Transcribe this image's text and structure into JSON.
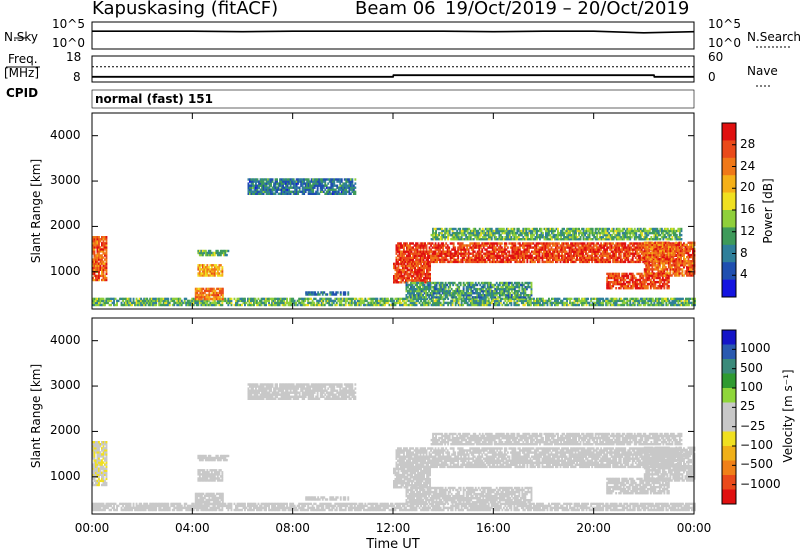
{
  "header": {
    "station": "Kapuskasing (fitACF)",
    "beam": "Beam 06",
    "dates": "19/Oct/2019 – 20/Oct/2019"
  },
  "noise_panel": {
    "left_label": "N.Sky",
    "right_label": "N.Search",
    "tick_top": "10^5",
    "tick_bottom": "10^0"
  },
  "freq_panel": {
    "left_label": "Freq.",
    "left_unit": "[MHz]",
    "right_label": "Nave",
    "left_tick_top": "18",
    "left_tick_bottom": "8",
    "right_tick_top": "60",
    "right_tick_bottom": "0",
    "cpid_label": "CPID",
    "cpid_text": "normal (fast) 151"
  },
  "axes": {
    "ylabel": "Slant Range [km]",
    "xlabel": "Time UT",
    "yticks": [
      "1000",
      "2000",
      "3000",
      "4000"
    ],
    "xticks": [
      "00:00",
      "04:00",
      "08:00",
      "12:00",
      "16:00",
      "20:00",
      "00:00"
    ]
  },
  "colorbars": {
    "power": {
      "label": "Power [dB]",
      "ticks": [
        "4",
        "8",
        "12",
        "16",
        "20",
        "24",
        "28"
      ],
      "colors": [
        "#1515e0",
        "#1f4fb0",
        "#2f7f9a",
        "#3e9a5a",
        "#8fcf3a",
        "#f0e020",
        "#f5b018",
        "#f07818",
        "#ea4a1a",
        "#e01010"
      ]
    },
    "velocity": {
      "label": "Velocity [m s⁻¹]",
      "ticks": [
        "1000",
        "500",
        "100",
        "25",
        "−25",
        "−100",
        "−500",
        "−1000"
      ],
      "colors": [
        "#1515c8",
        "#2a5ab0",
        "#3a8a7a",
        "#2f9a30",
        "#8fd63a",
        "#c8c8c8",
        "#c8c8c8",
        "#f0e020",
        "#f0b018",
        "#f08018",
        "#ea4a1a",
        "#e01010"
      ]
    }
  },
  "chart_data": {
    "type": "heatmap",
    "x_unit": "hours UT",
    "xlim": [
      0,
      24
    ],
    "y_unit": "km",
    "ylim": [
      180,
      4500
    ],
    "power_range_db": [
      0,
      32
    ],
    "velocity_range": [
      -1250,
      1250
    ],
    "noise_series": {
      "name": "N.Sky",
      "x": [
        0,
        2,
        4,
        6,
        8,
        10,
        12,
        14,
        16,
        18,
        20,
        22,
        24
      ],
      "log_values": [
        3.3,
        3.3,
        3.3,
        3.2,
        3.3,
        3.3,
        3.3,
        3.3,
        3.2,
        3.3,
        3.3,
        3.0,
        3.2
      ]
    },
    "freq_series": {
      "x": [
        0,
        12,
        12.02,
        22.4,
        22.42,
        24
      ],
      "values": [
        10.0,
        10.0,
        10.6,
        10.6,
        10.0,
        10.0
      ]
    },
    "nave_series": {
      "x": [
        0,
        24
      ],
      "values": [
        35,
        35
      ]
    },
    "echo_regions": [
      {
        "t": [
          0.0,
          0.6
        ],
        "r": [
          800,
          1750
        ],
        "power": 26,
        "vel": -200
      },
      {
        "t": [
          0.0,
          24.0
        ],
        "r": [
          250,
          420
        ],
        "power": 12,
        "vel": -60
      },
      {
        "t": [
          4.1,
          5.2
        ],
        "r": [
          380,
          650
        ],
        "power": 24,
        "vel": -20
      },
      {
        "t": [
          4.2,
          5.2
        ],
        "r": [
          900,
          1150
        ],
        "power": 22,
        "vel": -10
      },
      {
        "t": [
          4.2,
          5.4
        ],
        "r": [
          1350,
          1480
        ],
        "power": 12,
        "vel": 0
      },
      {
        "t": [
          6.2,
          10.5
        ],
        "r": [
          2700,
          3050
        ],
        "power": 8,
        "vel": 0
      },
      {
        "t": [
          8.5,
          10.2
        ],
        "r": [
          480,
          560
        ],
        "power": 8,
        "vel": 0
      },
      {
        "t": [
          12.1,
          23.6
        ],
        "r": [
          1200,
          1650
        ],
        "power": 28,
        "vel": 0
      },
      {
        "t": [
          12.0,
          13.5
        ],
        "r": [
          750,
          1200
        ],
        "power": 28,
        "vel": 0
      },
      {
        "t": [
          13.5,
          23.5
        ],
        "r": [
          1700,
          1950
        ],
        "power": 12,
        "vel": 0
      },
      {
        "t": [
          20.5,
          23.0
        ],
        "r": [
          620,
          980
        ],
        "power": 28,
        "vel": 60
      },
      {
        "t": [
          22.0,
          24.0
        ],
        "r": [
          900,
          1650
        ],
        "power": 26,
        "vel": 0
      },
      {
        "t": [
          12.5,
          17.5
        ],
        "r": [
          420,
          760
        ],
        "power": 10,
        "vel": 0
      }
    ]
  }
}
